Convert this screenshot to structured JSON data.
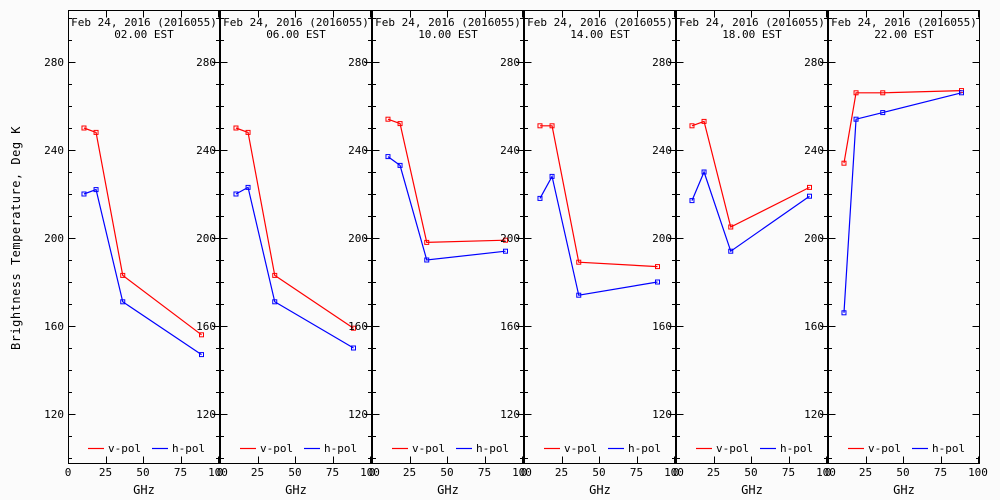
{
  "figure": {
    "background": "#fbfbfb",
    "ylabel": "Brightness Temperature, Deg K",
    "xlabel": "GHz"
  },
  "chart_data": {
    "type": "line",
    "x": [
      10.65,
      18.7,
      36.5,
      89.0
    ],
    "xlabel": "GHz",
    "ylabel": "Brightness Temperature, Deg K",
    "xlim": [
      0,
      100
    ],
    "xticks": [
      0,
      25,
      50,
      75,
      100
    ],
    "ylim": [
      98,
      303
    ],
    "yticks": [
      120,
      160,
      200,
      240,
      280
    ],
    "y_minor_step": 10,
    "grid": false,
    "legend_position": "bottom-inside-each-panel",
    "legend": [
      {
        "label": "v-pol",
        "color": "#ff0000"
      },
      {
        "label": "h-pol",
        "color": "#0000ff"
      }
    ],
    "panels": [
      {
        "title": "Feb 24, 2016 (2016055)",
        "subtitle": "02.00 EST",
        "series": [
          {
            "name": "v-pol",
            "color": "#ff0000",
            "values": [
              250,
              248,
              183,
              156
            ]
          },
          {
            "name": "h-pol",
            "color": "#0000ff",
            "values": [
              220,
              222,
              171,
              147
            ]
          }
        ]
      },
      {
        "title": "Feb 24, 2016 (2016055)",
        "subtitle": "06.00 EST",
        "series": [
          {
            "name": "v-pol",
            "color": "#ff0000",
            "values": [
              250,
              248,
              183,
              159
            ]
          },
          {
            "name": "h-pol",
            "color": "#0000ff",
            "values": [
              220,
              223,
              171,
              150
            ]
          }
        ]
      },
      {
        "title": "Feb 24, 2016 (2016055)",
        "subtitle": "10.00 EST",
        "series": [
          {
            "name": "v-pol",
            "color": "#ff0000",
            "values": [
              254,
              252,
              198,
              199
            ]
          },
          {
            "name": "h-pol",
            "color": "#0000ff",
            "values": [
              237,
              233,
              190,
              194
            ]
          }
        ]
      },
      {
        "title": "Feb 24, 2016 (2016055)",
        "subtitle": "14.00 EST",
        "series": [
          {
            "name": "v-pol",
            "color": "#ff0000",
            "values": [
              251,
              251,
              189,
              187
            ]
          },
          {
            "name": "h-pol",
            "color": "#0000ff",
            "values": [
              218,
              228,
              174,
              180
            ]
          }
        ]
      },
      {
        "title": "Feb 24, 2016 (2016055)",
        "subtitle": "18.00 EST",
        "series": [
          {
            "name": "v-pol",
            "color": "#ff0000",
            "values": [
              251,
              253,
              205,
              223
            ]
          },
          {
            "name": "h-pol",
            "color": "#0000ff",
            "values": [
              217,
              230,
              194,
              219
            ]
          }
        ]
      },
      {
        "title": "Feb 24, 2016 (2016055)",
        "subtitle": "22.00 EST",
        "series": [
          {
            "name": "v-pol",
            "color": "#ff0000",
            "values": [
              234,
              266,
              266,
              267
            ]
          },
          {
            "name": "h-pol",
            "color": "#0000ff",
            "values": [
              166,
              254,
              257,
              266
            ]
          }
        ]
      }
    ]
  }
}
